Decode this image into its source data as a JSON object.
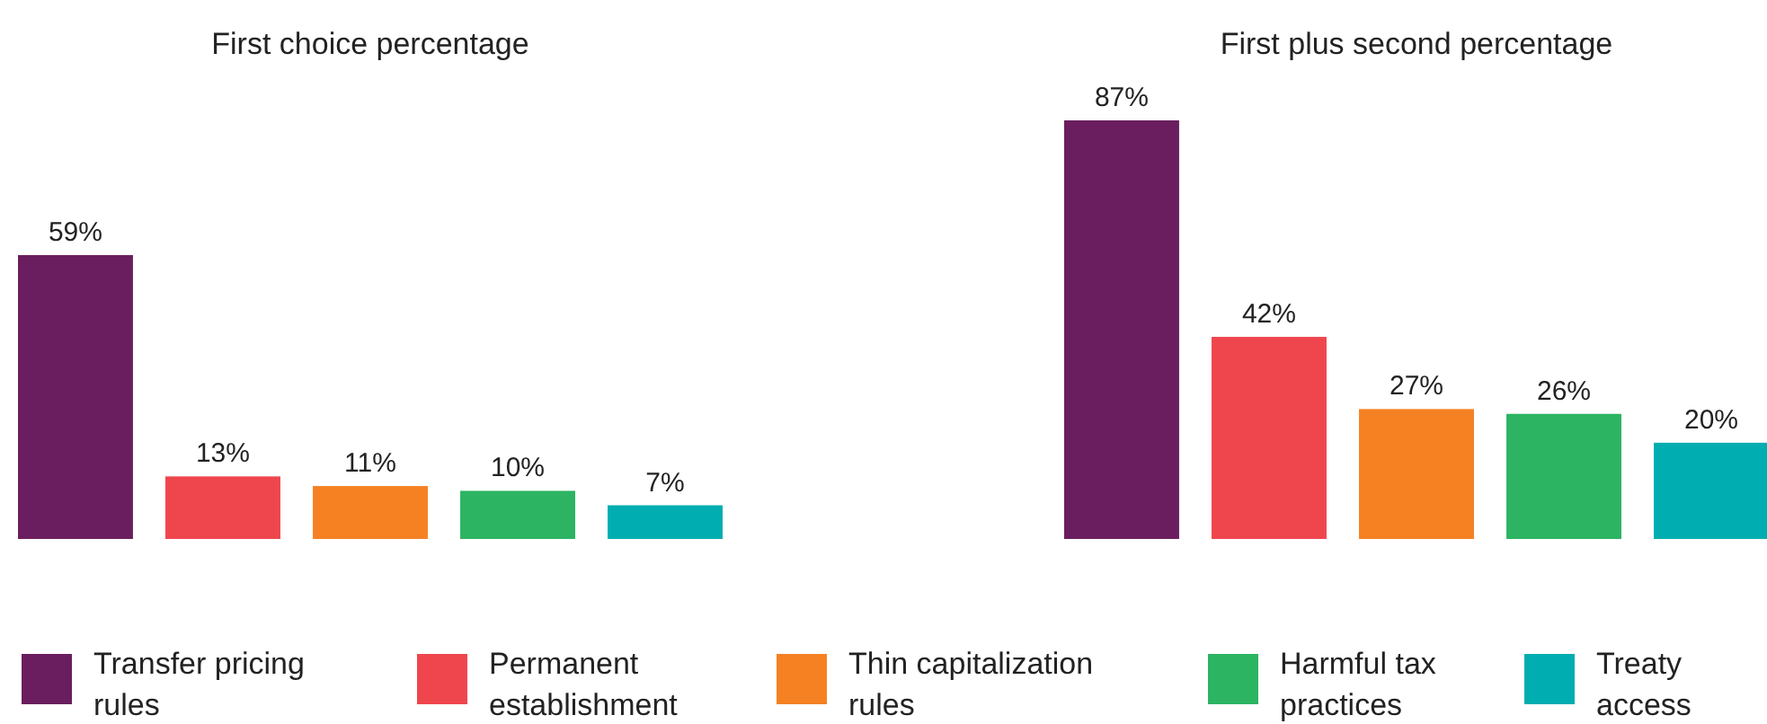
{
  "chart_data": [
    {
      "type": "bar",
      "title": "First choice percentage",
      "categories": [
        null
      ],
      "legend": "bottom",
      "series": [
        {
          "name": "Transfer pricing rules",
          "color": "#6a1e5f",
          "values": [
            59
          ],
          "value_labels": [
            "59%"
          ]
        },
        {
          "name": "Permanent establishment",
          "color": "#ef464e",
          "values": [
            13
          ],
          "value_labels": [
            "13%"
          ]
        },
        {
          "name": "Thin capitalization rules",
          "color": "#f58123",
          "values": [
            11
          ],
          "value_labels": [
            "11%"
          ]
        },
        {
          "name": "Harmful tax practices",
          "color": "#2cb463",
          "values": [
            10
          ],
          "value_labels": [
            "10%"
          ]
        },
        {
          "name": "Treaty access",
          "color": "#00adb0",
          "values": [
            7
          ],
          "value_labels": [
            "7%"
          ]
        }
      ]
    },
    {
      "type": "bar",
      "title": "First plus second percentage",
      "categories": [
        null
      ],
      "series": [
        {
          "color": "#6a1e5f",
          "values": [
            87
          ],
          "value_labels": [
            "87%"
          ]
        },
        {
          "color": "#ef464e",
          "values": [
            42
          ],
          "value_labels": [
            "42%"
          ]
        },
        {
          "color": "#f58123",
          "values": [
            27
          ],
          "value_labels": [
            "27%"
          ]
        },
        {
          "color": "#2cb463",
          "values": [
            26
          ],
          "value_labels": [
            "26%"
          ]
        },
        {
          "color": "#00adb0",
          "values": [
            20
          ],
          "value_labels": [
            "20%"
          ]
        }
      ]
    }
  ]
}
